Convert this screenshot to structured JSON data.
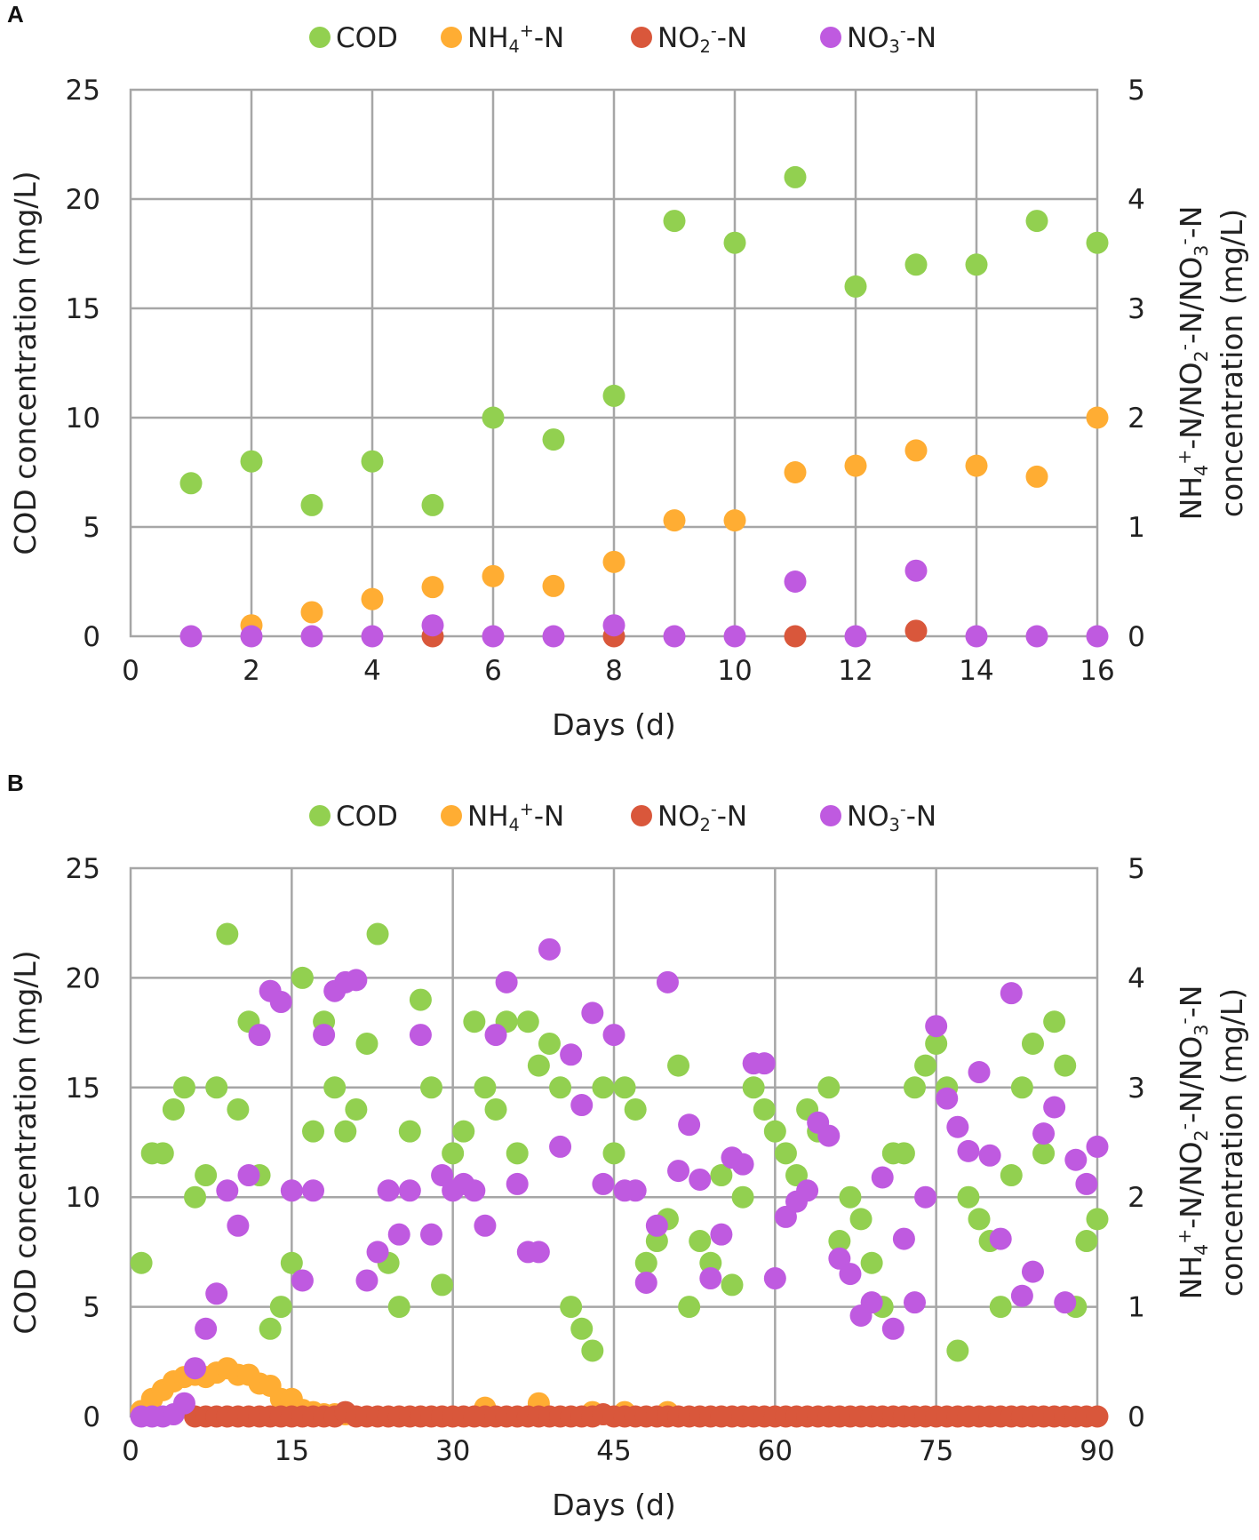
{
  "colors": {
    "cod": "#92d050",
    "nh4": "#ffad33",
    "no2": "#d9573b",
    "no3": "#bf5ae0",
    "grid": "#a6a6a6"
  },
  "chart_data": [
    {
      "panel": "A",
      "type": "scatter",
      "legend": [
        "COD",
        "NH4+-N",
        "NO2--N",
        "NO3--N"
      ],
      "xlabel": "Days (d)",
      "ylabel": "COD concentration (mg/L)",
      "y2label": "NH4+-N/NO2--N/NO3--N concentration (mg/L)",
      "xlim": [
        0,
        16
      ],
      "xticks": [
        0,
        2,
        4,
        6,
        8,
        10,
        12,
        14,
        16
      ],
      "ylim": [
        0,
        25
      ],
      "yticks": [
        0,
        5,
        10,
        15,
        20,
        25
      ],
      "y2lim": [
        0,
        5
      ],
      "y2ticks": [
        0,
        1,
        2,
        3,
        4,
        5
      ],
      "series": [
        {
          "name": "COD",
          "axis": "left",
          "x": [
            1,
            2,
            3,
            4,
            5,
            6,
            7,
            8,
            9,
            10,
            11,
            12,
            13,
            14,
            15,
            16
          ],
          "y": [
            7,
            8,
            6,
            8,
            6,
            10,
            9,
            11,
            19,
            18,
            21,
            16,
            17,
            17,
            19,
            18
          ]
        },
        {
          "name": "NH4+-N",
          "axis": "right",
          "x": [
            2,
            3,
            4,
            5,
            6,
            7,
            8,
            9,
            10,
            11,
            12,
            13,
            14,
            15,
            16
          ],
          "y": [
            0.1,
            0.22,
            0.34,
            0.45,
            0.55,
            0.46,
            0.68,
            1.06,
            1.06,
            1.5,
            1.56,
            1.7,
            1.56,
            1.46,
            2.0
          ]
        },
        {
          "name": "NO2--N",
          "axis": "right",
          "x": [
            5,
            8,
            11,
            13
          ],
          "y": [
            0,
            0,
            0,
            0.05
          ]
        },
        {
          "name": "NO3--N",
          "axis": "right",
          "x": [
            1,
            2,
            3,
            4,
            5,
            6,
            7,
            8,
            9,
            10,
            11,
            12,
            13,
            14,
            15,
            16
          ],
          "y": [
            0,
            0,
            0,
            0,
            0.1,
            0,
            0,
            0.1,
            0,
            0,
            0.5,
            0,
            0.6,
            0,
            0,
            0
          ]
        }
      ]
    },
    {
      "panel": "B",
      "type": "scatter",
      "legend": [
        "COD",
        "NH4+-N",
        "NO2--N",
        "NO3--N"
      ],
      "xlabel": "Days (d)",
      "ylabel": "COD concentration (mg/L)",
      "y2label": "NH4+-N/NO2--N/NO3--N concentration (mg/L)",
      "xlim": [
        0,
        90
      ],
      "xticks": [
        0,
        15,
        30,
        45,
        60,
        75,
        90
      ],
      "ylim": [
        0,
        25
      ],
      "yticks": [
        0,
        5,
        10,
        15,
        20,
        25
      ],
      "y2lim": [
        0,
        5
      ],
      "y2ticks": [
        0,
        1,
        2,
        3,
        4,
        5
      ],
      "series": [
        {
          "name": "COD",
          "axis": "left",
          "x": [
            1,
            2,
            3,
            4,
            5,
            6,
            7,
            8,
            9,
            10,
            11,
            12,
            13,
            14,
            15,
            16,
            17,
            18,
            19,
            20,
            21,
            22,
            23,
            24,
            25,
            26,
            27,
            28,
            29,
            30,
            31,
            32,
            33,
            34,
            35,
            36,
            37,
            38,
            39,
            40,
            41,
            42,
            43,
            44,
            45,
            46,
            47,
            48,
            49,
            50,
            51,
            52,
            53,
            54,
            55,
            56,
            57,
            58,
            59,
            60,
            61,
            62,
            63,
            64,
            65,
            66,
            67,
            68,
            69,
            70,
            71,
            72,
            73,
            74,
            75,
            76,
            77,
            78,
            79,
            80,
            81,
            82,
            83,
            84,
            85,
            86,
            87,
            88,
            89,
            90
          ],
          "y": [
            7,
            12,
            12,
            14,
            15,
            10,
            11,
            15,
            22,
            14,
            18,
            11,
            4,
            5,
            7,
            20,
            13,
            18,
            15,
            13,
            14,
            17,
            22,
            7,
            5,
            13,
            19,
            15,
            6,
            12,
            13,
            18,
            15,
            14,
            18,
            12,
            18,
            16,
            17,
            15,
            5,
            4,
            3,
            15,
            12,
            15,
            14,
            7,
            8,
            9,
            16,
            5,
            8,
            7,
            11,
            6,
            10,
            15,
            14,
            13,
            12,
            11,
            14,
            13,
            15,
            8,
            10,
            9,
            7,
            5,
            12,
            12,
            15,
            16,
            17,
            15,
            3,
            10,
            9,
            8,
            5,
            11,
            15,
            17,
            12,
            18,
            16,
            5,
            8,
            9
          ]
        },
        {
          "name": "NH4+-N",
          "axis": "right",
          "x": [
            1,
            2,
            3,
            4,
            5,
            6,
            7,
            8,
            9,
            10,
            11,
            12,
            13,
            14,
            15,
            16,
            17,
            18,
            19,
            20,
            33,
            38,
            43,
            46,
            50
          ],
          "y": [
            0.05,
            0.16,
            0.24,
            0.32,
            0.36,
            0.38,
            0.36,
            0.4,
            0.44,
            0.38,
            0.38,
            0.3,
            0.28,
            0.16,
            0.16,
            0.06,
            0.04,
            0.02,
            0.02,
            0.02,
            0.08,
            0.12,
            0.04,
            0.04,
            0.04
          ]
        },
        {
          "name": "NO2--N",
          "axis": "right",
          "x": [
            6,
            7,
            8,
            9,
            10,
            11,
            12,
            13,
            14,
            15,
            16,
            17,
            18,
            19,
            20,
            21,
            22,
            23,
            24,
            25,
            26,
            27,
            28,
            29,
            30,
            31,
            32,
            33,
            34,
            35,
            36,
            37,
            38,
            39,
            40,
            41,
            42,
            43,
            44,
            45,
            46,
            47,
            48,
            49,
            50,
            51,
            52,
            53,
            54,
            55,
            56,
            57,
            58,
            59,
            60,
            61,
            62,
            63,
            64,
            65,
            66,
            67,
            68,
            69,
            70,
            71,
            72,
            73,
            74,
            75,
            76,
            77,
            78,
            79,
            80,
            81,
            82,
            83,
            84,
            85,
            86,
            87,
            88,
            89,
            90
          ],
          "y": [
            0,
            0,
            0,
            0,
            0,
            0,
            0,
            0,
            0,
            0,
            0,
            0,
            0,
            0,
            0.04,
            0,
            0,
            0,
            0,
            0,
            0,
            0,
            0,
            0,
            0,
            0,
            0,
            0,
            0,
            0,
            0,
            0,
            0,
            0,
            0,
            0,
            0,
            0,
            0.02,
            0,
            0,
            0,
            0,
            0,
            0,
            0,
            0,
            0,
            0,
            0,
            0,
            0,
            0,
            0,
            0,
            0,
            0,
            0,
            0,
            0,
            0,
            0,
            0,
            0,
            0,
            0,
            0,
            0,
            0,
            0,
            0,
            0,
            0,
            0,
            0,
            0,
            0,
            0,
            0,
            0,
            0,
            0,
            0,
            0,
            0
          ]
        },
        {
          "name": "NO3--N",
          "axis": "right",
          "x": [
            1,
            2,
            3,
            4,
            5,
            6,
            7,
            8,
            9,
            10,
            11,
            12,
            13,
            14,
            15,
            16,
            17,
            18,
            19,
            20,
            21,
            22,
            23,
            24,
            25,
            26,
            27,
            28,
            29,
            30,
            31,
            32,
            33,
            34,
            35,
            36,
            37,
            38,
            39,
            40,
            41,
            42,
            43,
            44,
            45,
            46,
            47,
            48,
            49,
            50,
            51,
            52,
            53,
            54,
            55,
            56,
            57,
            58,
            59,
            60,
            61,
            62,
            63,
            64,
            65,
            66,
            67,
            68,
            69,
            70,
            71,
            72,
            73,
            74,
            75,
            76,
            77,
            78,
            79,
            80,
            81,
            82,
            83,
            84,
            85,
            86,
            87,
            88,
            89,
            90
          ],
          "y": [
            0,
            0,
            0,
            0.02,
            0.12,
            0.44,
            0.8,
            1.12,
            2.06,
            1.74,
            2.2,
            3.48,
            3.88,
            3.78,
            2.06,
            1.24,
            2.06,
            3.48,
            3.88,
            3.96,
            3.98,
            1.24,
            1.5,
            2.06,
            1.66,
            2.06,
            3.48,
            1.66,
            2.2,
            2.06,
            2.12,
            2.06,
            1.74,
            3.48,
            3.96,
            2.12,
            1.5,
            1.5,
            4.26,
            2.46,
            3.3,
            2.84,
            3.68,
            2.12,
            3.48,
            2.06,
            2.06,
            1.22,
            1.74,
            3.96,
            2.24,
            2.66,
            2.16,
            1.26,
            1.66,
            2.36,
            2.3,
            3.22,
            3.22,
            1.26,
            1.82,
            1.96,
            2.06,
            2.68,
            2.56,
            1.44,
            1.3,
            0.92,
            1.04,
            2.18,
            0.8,
            1.62,
            1.04,
            2.0,
            3.56,
            2.9,
            2.64,
            2.42,
            3.14,
            2.38,
            1.62,
            3.86,
            1.1,
            1.32,
            2.58,
            2.82,
            1.04,
            2.34,
            2.12,
            2.46
          ]
        }
      ]
    }
  ]
}
